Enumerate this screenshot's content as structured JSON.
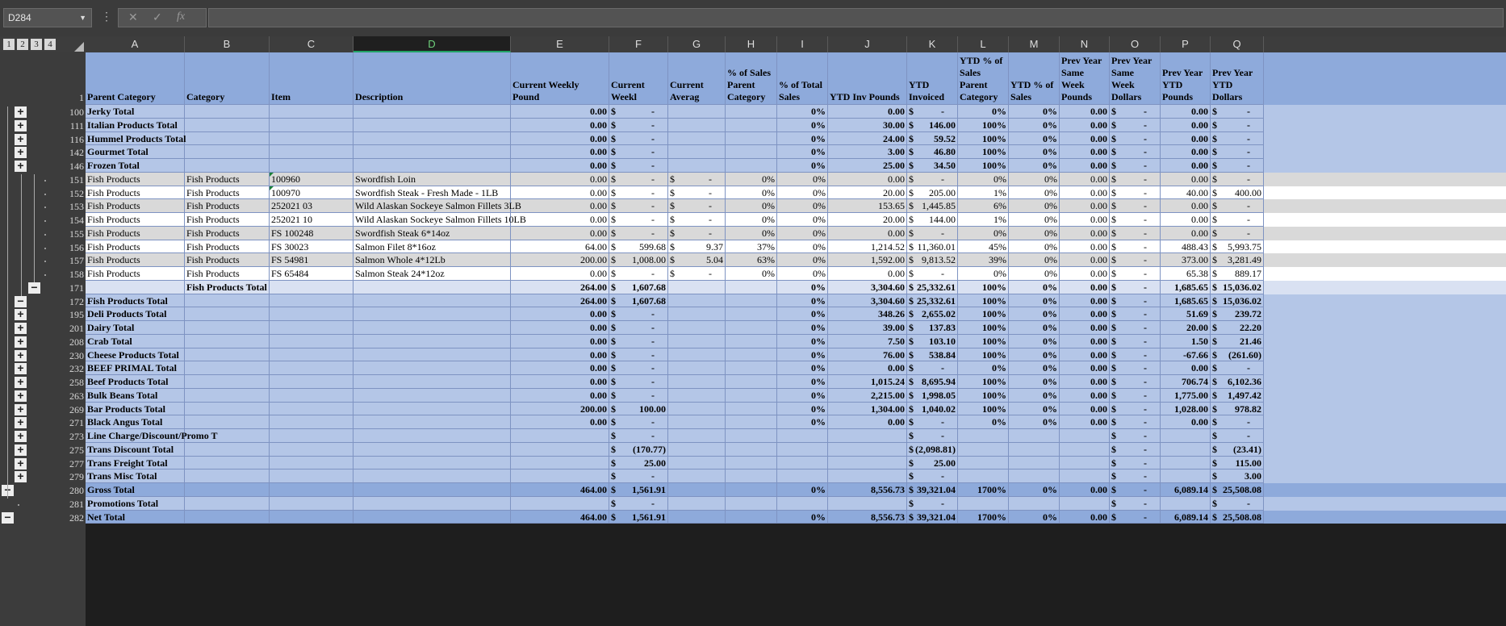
{
  "namebox": "D284",
  "formula_icons": {
    "cancel": "✕",
    "enter": "✓",
    "fx": "fx"
  },
  "levels": [
    "1",
    "2",
    "3",
    "4"
  ],
  "columns": [
    "A",
    "B",
    "C",
    "D",
    "E",
    "F",
    "G",
    "H",
    "I",
    "J",
    "K",
    "L",
    "M",
    "N",
    "O",
    "P",
    "Q"
  ],
  "selected_column": "D",
  "headers": {
    "row_num": "1",
    "cells": [
      "Parent Category",
      "Category",
      "Item",
      "Description",
      "Current Weekly Pound",
      "Current Weekl",
      "Current Averag",
      "% of Sales Parent Category",
      "% of Total Sales",
      "YTD Inv Pounds",
      "YTD Invoiced",
      "YTD % of Sales Parent Category",
      "YTD % of Sales",
      "Prev Year Same Week Pounds",
      "Prev Year Same Week Dollars",
      "Prev Year YTD Pounds",
      "Prev Year YTD Dollars"
    ]
  },
  "rows": [
    {
      "n": "100",
      "style": "sub",
      "ctl": "+",
      "c": [
        "Jerky Total",
        "",
        "",
        "",
        "0.00",
        "$|-",
        "",
        "",
        "0%",
        "0.00",
        "$|-",
        "0%",
        "0%",
        "0.00",
        "$|-",
        "0.00",
        "$|-"
      ]
    },
    {
      "n": "111",
      "style": "sub",
      "ctl": "+",
      "c": [
        "Italian Products Total",
        "",
        "",
        "",
        "0.00",
        "$|-",
        "",
        "",
        "0%",
        "30.00",
        "$|146.00",
        "100%",
        "0%",
        "0.00",
        "$|-",
        "0.00",
        "$|-"
      ]
    },
    {
      "n": "116",
      "style": "sub",
      "ctl": "+",
      "c": [
        "Hummel Products Total",
        "",
        "",
        "",
        "0.00",
        "$|-",
        "",
        "",
        "0%",
        "24.00",
        "$|59.52",
        "100%",
        "0%",
        "0.00",
        "$|-",
        "0.00",
        "$|-"
      ]
    },
    {
      "n": "142",
      "style": "sub",
      "ctl": "+",
      "c": [
        "Gourmet Total",
        "",
        "",
        "",
        "0.00",
        "$|-",
        "",
        "",
        "0%",
        "3.00",
        "$|46.80",
        "100%",
        "0%",
        "0.00",
        "$|-",
        "0.00",
        "$|-"
      ]
    },
    {
      "n": "146",
      "style": "sub",
      "ctl": "+",
      "c": [
        "Frozen Total",
        "",
        "",
        "",
        "0.00",
        "$|-",
        "",
        "",
        "0%",
        "25.00",
        "$|34.50",
        "100%",
        "0%",
        "0.00",
        "$|-",
        "0.00",
        "$|-"
      ]
    },
    {
      "n": "151",
      "style": "grey",
      "ctl": ".",
      "c": [
        "Fish Products",
        "Fish Products",
        "100960",
        "Swordfish Loin",
        "0.00",
        "$|-",
        "$|-",
        "0%",
        "0%",
        "0.00",
        "$|-",
        "0%",
        "0%",
        "0.00",
        "$|-",
        "0.00",
        "$|-"
      ]
    },
    {
      "n": "152",
      "style": "white",
      "ctl": ".",
      "c": [
        "Fish Products",
        "Fish Products",
        "100970",
        "Swordfish Steak - Fresh Made - 1LB",
        "0.00",
        "$|-",
        "$|-",
        "0%",
        "0%",
        "20.00",
        "$|205.00",
        "1%",
        "0%",
        "0.00",
        "$|-",
        "40.00",
        "$|400.00"
      ]
    },
    {
      "n": "153",
      "style": "grey",
      "ctl": ".",
      "c": [
        "Fish Products",
        "Fish Products",
        "252021 03",
        "Wild Alaskan Sockeye Salmon Fillets 3LB",
        "0.00",
        "$|-",
        "$|-",
        "0%",
        "0%",
        "153.65",
        "$|1,445.85",
        "6%",
        "0%",
        "0.00",
        "$|-",
        "0.00",
        "$|-"
      ]
    },
    {
      "n": "154",
      "style": "white",
      "ctl": ".",
      "c": [
        "Fish Products",
        "Fish Products",
        "252021 10",
        "Wild Alaskan Sockeye Salmon Fillets 10LB",
        "0.00",
        "$|-",
        "$|-",
        "0%",
        "0%",
        "20.00",
        "$|144.00",
        "1%",
        "0%",
        "0.00",
        "$|-",
        "0.00",
        "$|-"
      ]
    },
    {
      "n": "155",
      "style": "grey",
      "ctl": ".",
      "c": [
        "Fish Products",
        "Fish Products",
        "FS 100248",
        "Swordfish Steak 6*14oz",
        "0.00",
        "$|-",
        "$|-",
        "0%",
        "0%",
        "0.00",
        "$|-",
        "0%",
        "0%",
        "0.00",
        "$|-",
        "0.00",
        "$|-"
      ]
    },
    {
      "n": "156",
      "style": "white",
      "ctl": ".",
      "c": [
        "Fish Products",
        "Fish Products",
        "FS 30023",
        "Salmon Filet 8*16oz",
        "64.00",
        "$|599.68",
        "$|9.37",
        "37%",
        "0%",
        "1,214.52",
        "$|11,360.01",
        "45%",
        "0%",
        "0.00",
        "$|-",
        "488.43",
        "$|5,993.75"
      ]
    },
    {
      "n": "157",
      "style": "grey",
      "ctl": ".",
      "c": [
        "Fish Products",
        "Fish Products",
        "FS 54981",
        "Salmon Whole 4*12Lb",
        "200.00",
        "$|1,008.00",
        "$|5.04",
        "63%",
        "0%",
        "1,592.00",
        "$|9,813.52",
        "39%",
        "0%",
        "0.00",
        "$|-",
        "373.00",
        "$|3,281.49"
      ]
    },
    {
      "n": "158",
      "style": "white",
      "ctl": ".",
      "c": [
        "Fish Products",
        "Fish Products",
        "FS 65484",
        "Salmon Steak 24*12oz",
        "0.00",
        "$|-",
        "$|-",
        "0%",
        "0%",
        "0.00",
        "$|-",
        "0%",
        "0%",
        "0.00",
        "$|-",
        "65.38",
        "$|889.17"
      ]
    },
    {
      "n": "171",
      "style": "light",
      "ctl": "−",
      "c": [
        "",
        "Fish Products Total",
        "",
        "",
        "264.00",
        "$|1,607.68",
        "",
        "",
        "0%",
        "3,304.60",
        "$|25,332.61",
        "100%",
        "0%",
        "0.00",
        "$|-",
        "1,685.65",
        "$|15,036.02"
      ]
    },
    {
      "n": "172",
      "style": "sub",
      "ctl": "−",
      "c": [
        "Fish Products Total",
        "",
        "",
        "",
        "264.00",
        "$|1,607.68",
        "",
        "",
        "0%",
        "3,304.60",
        "$|25,332.61",
        "100%",
        "0%",
        "0.00",
        "$|-",
        "1,685.65",
        "$|15,036.02"
      ]
    },
    {
      "n": "195",
      "style": "sub",
      "ctl": "+",
      "c": [
        "Deli Products Total",
        "",
        "",
        "",
        "0.00",
        "$|-",
        "",
        "",
        "0%",
        "348.26",
        "$|2,655.02",
        "100%",
        "0%",
        "0.00",
        "$|-",
        "51.69",
        "$|239.72"
      ]
    },
    {
      "n": "201",
      "style": "sub",
      "ctl": "+",
      "c": [
        "Dairy Total",
        "",
        "",
        "",
        "0.00",
        "$|-",
        "",
        "",
        "0%",
        "39.00",
        "$|137.83",
        "100%",
        "0%",
        "0.00",
        "$|-",
        "20.00",
        "$|22.20"
      ]
    },
    {
      "n": "208",
      "style": "sub",
      "ctl": "+",
      "c": [
        "Crab Total",
        "",
        "",
        "",
        "0.00",
        "$|-",
        "",
        "",
        "0%",
        "7.50",
        "$|103.10",
        "100%",
        "0%",
        "0.00",
        "$|-",
        "1.50",
        "$|21.46"
      ]
    },
    {
      "n": "230",
      "style": "sub",
      "ctl": "+",
      "c": [
        "Cheese Products Total",
        "",
        "",
        "",
        "0.00",
        "$|-",
        "",
        "",
        "0%",
        "76.00",
        "$|538.84",
        "100%",
        "0%",
        "0.00",
        "$|-",
        "-67.66",
        "$|(261.60)"
      ]
    },
    {
      "n": "232",
      "style": "sub",
      "ctl": "+",
      "c": [
        "BEEF PRIMAL Total",
        "",
        "",
        "",
        "0.00",
        "$|-",
        "",
        "",
        "0%",
        "0.00",
        "$|-",
        "0%",
        "0%",
        "0.00",
        "$|-",
        "0.00",
        "$|-"
      ]
    },
    {
      "n": "258",
      "style": "sub",
      "ctl": "+",
      "c": [
        "Beef Products Total",
        "",
        "",
        "",
        "0.00",
        "$|-",
        "",
        "",
        "0%",
        "1,015.24",
        "$|8,695.94",
        "100%",
        "0%",
        "0.00",
        "$|-",
        "706.74",
        "$|6,102.36"
      ]
    },
    {
      "n": "263",
      "style": "sub",
      "ctl": "+",
      "c": [
        "Bulk Beans Total",
        "",
        "",
        "",
        "0.00",
        "$|-",
        "",
        "",
        "0%",
        "2,215.00",
        "$|1,998.05",
        "100%",
        "0%",
        "0.00",
        "$|-",
        "1,775.00",
        "$|1,497.42"
      ]
    },
    {
      "n": "269",
      "style": "sub",
      "ctl": "+",
      "c": [
        "Bar Products Total",
        "",
        "",
        "",
        "200.00",
        "$|100.00",
        "",
        "",
        "0%",
        "1,304.00",
        "$|1,040.02",
        "100%",
        "0%",
        "0.00",
        "$|-",
        "1,028.00",
        "$|978.82"
      ]
    },
    {
      "n": "271",
      "style": "sub",
      "ctl": "+",
      "c": [
        "Black Angus Total",
        "",
        "",
        "",
        "0.00",
        "$|-",
        "",
        "",
        "0%",
        "0.00",
        "$|-",
        "0%",
        "0%",
        "0.00",
        "$|-",
        "0.00",
        "$|-"
      ]
    },
    {
      "n": "273",
      "style": "sub",
      "ctl": "+",
      "c": [
        "Line Charge/Discount/Promo T",
        "",
        "",
        "",
        "",
        "$|-",
        "",
        "",
        "",
        "",
        "$|-",
        "",
        "",
        "",
        "$|-",
        "",
        "$|-"
      ]
    },
    {
      "n": "275",
      "style": "sub",
      "ctl": "+",
      "c": [
        "Trans Discount Total",
        "",
        "",
        "",
        "",
        "$|(170.77)",
        "",
        "",
        "",
        "",
        "$|(2,098.81)",
        "",
        "",
        "",
        "$|-",
        "",
        "$|(23.41)"
      ]
    },
    {
      "n": "277",
      "style": "sub",
      "ctl": "+",
      "c": [
        "Trans Freight Total",
        "",
        "",
        "",
        "",
        "$|25.00",
        "",
        "",
        "",
        "",
        "$|25.00",
        "",
        "",
        "",
        "$|-",
        "",
        "$|115.00"
      ]
    },
    {
      "n": "279",
      "style": "sub",
      "ctl": "+",
      "c": [
        "Trans Misc Total",
        "",
        "",
        "",
        "",
        "$|-",
        "",
        "",
        "",
        "",
        "$|-",
        "",
        "",
        "",
        "$|-",
        "",
        "$|3.00"
      ]
    },
    {
      "n": "280",
      "style": "gross",
      "ctl": "−",
      "c": [
        "Gross Total",
        "",
        "",
        "",
        "464.00",
        "$|1,561.91",
        "",
        "",
        "0%",
        "8,556.73",
        "$|39,321.04",
        "1700%",
        "0%",
        "0.00",
        "$|-",
        "6,089.14",
        "$|25,508.08"
      ]
    },
    {
      "n": "281",
      "style": "sub",
      "ctl": ".",
      "c": [
        "Promotions Total",
        "",
        "",
        "",
        "",
        "$|-",
        "",
        "",
        "",
        "",
        "$|-",
        "",
        "",
        "",
        "$|-",
        "",
        "$|-"
      ]
    },
    {
      "n": "282",
      "style": "gross",
      "ctl": "−",
      "c": [
        "Net Total",
        "",
        "",
        "",
        "464.00",
        "$|1,561.91",
        "",
        "",
        "0%",
        "8,556.73",
        "$|39,321.04",
        "1700%",
        "0%",
        "0.00",
        "$|-",
        "6,089.14",
        "$|25,508.08"
      ]
    }
  ],
  "colors": {
    "header": "#8eaadb",
    "sub": "#b4c6e7",
    "light": "#d9e1f2",
    "grey": "#d9d9d9",
    "white": "#ffffff",
    "gross": "#8eaadb",
    "accent": "#21a366"
  }
}
